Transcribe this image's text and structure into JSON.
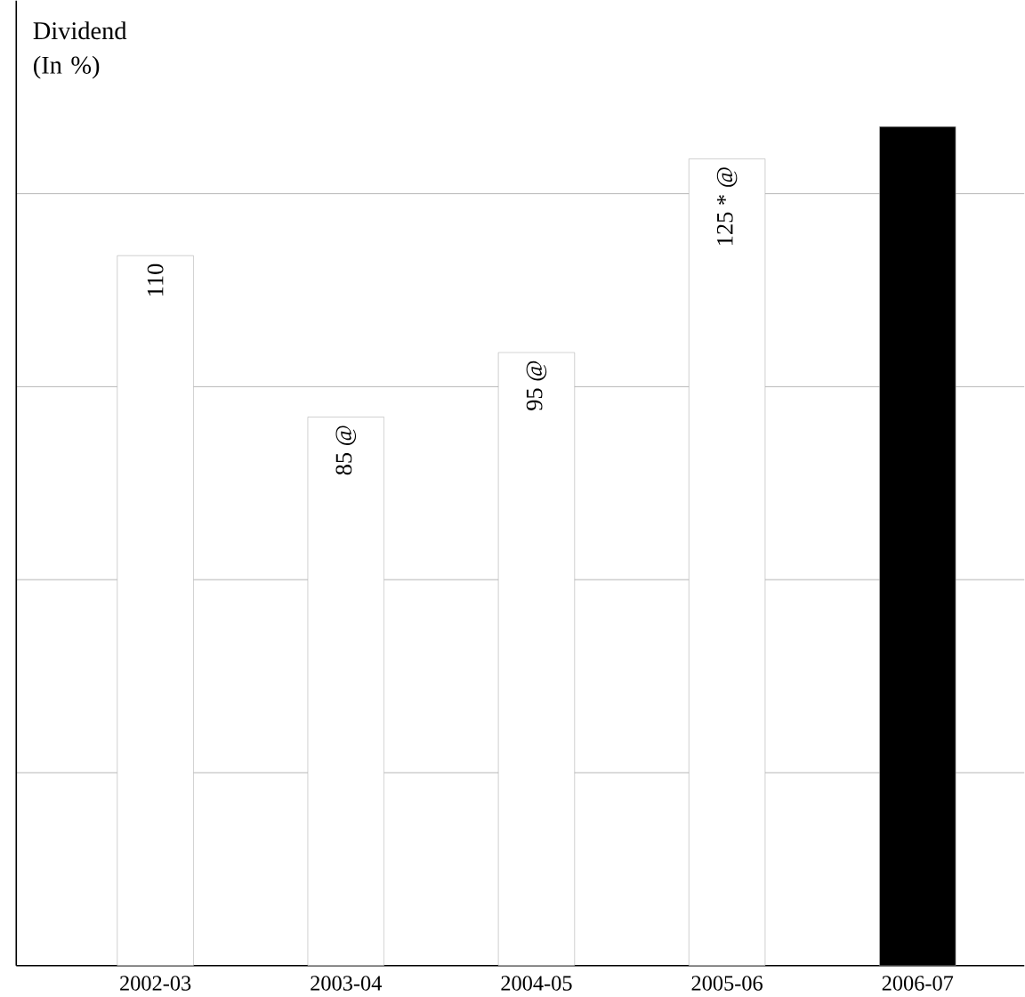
{
  "chart_data": {
    "type": "bar",
    "ylabel": "Dividend (In %)",
    "categories": [
      "2002-03",
      "2003-04",
      "2004-05",
      "2005-06",
      "2006-07"
    ],
    "values": [
      110,
      85,
      95,
      125,
      130
    ],
    "colors": [
      "#ffffff",
      "#ffffff",
      "#ffffff",
      "#ffffff",
      "#000000"
    ],
    "value_labels": [
      "110",
      "85 @",
      "95 @",
      "125 * @",
      null
    ],
    "grid": "y"
  }
}
